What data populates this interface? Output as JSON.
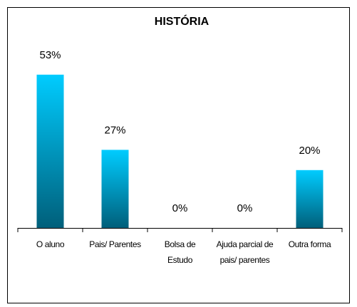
{
  "chart_data": {
    "type": "bar",
    "title": "HISTÓRIA",
    "categories": [
      "O aluno",
      "Pais/ Parentes",
      "Bolsa de Estudo",
      "Ajuda parcial de pais/ parentes",
      "Outra forma"
    ],
    "values": [
      53,
      27,
      0,
      0,
      20
    ],
    "value_labels": [
      "53%",
      "27%",
      "0%",
      "0%",
      "20%"
    ],
    "color": "#00ccff"
  }
}
